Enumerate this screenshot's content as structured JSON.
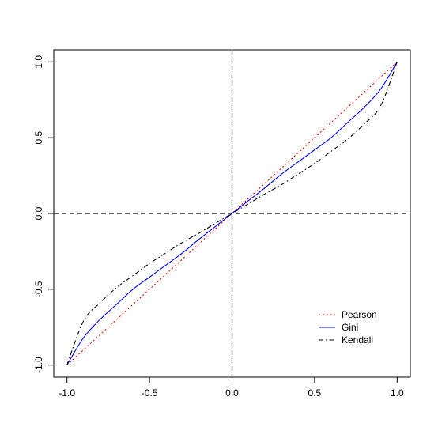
{
  "chart_data": {
    "type": "line",
    "title": "",
    "xlabel": "",
    "ylabel": "",
    "xlim": [
      -1.0,
      1.0
    ],
    "ylim": [
      -1.0,
      1.0
    ],
    "grid": false,
    "legend_position": "bottom-right",
    "x_ticks": [
      {
        "value": -1.0,
        "label": "-1.0"
      },
      {
        "value": -0.5,
        "label": "-0.5"
      },
      {
        "value": 0.0,
        "label": "0.0"
      },
      {
        "value": 0.5,
        "label": "0.5"
      },
      {
        "value": 1.0,
        "label": "1.0"
      }
    ],
    "y_ticks": [
      {
        "value": -1.0,
        "label": "-1.0"
      },
      {
        "value": -0.5,
        "label": "-0.5"
      },
      {
        "value": 0.0,
        "label": "0.0"
      },
      {
        "value": 0.5,
        "label": "0.5"
      },
      {
        "value": 1.0,
        "label": "1.0"
      }
    ],
    "reference_lines": [
      {
        "orientation": "vertical",
        "value": 0.0,
        "style": "dashed",
        "color": "#000000"
      },
      {
        "orientation": "horizontal",
        "value": 0.0,
        "style": "dashed",
        "color": "#000000"
      }
    ],
    "x": [
      -1.0,
      -0.9,
      -0.8,
      -0.7,
      -0.6,
      -0.5,
      -0.4,
      -0.3,
      -0.2,
      -0.1,
      0.0,
      0.1,
      0.2,
      0.3,
      0.4,
      0.5,
      0.6,
      0.7,
      0.8,
      0.9,
      1.0
    ],
    "series": [
      {
        "name": "Pearson",
        "color": "#ff0000",
        "style": "dotted",
        "values": [
          -1.0,
          -0.9,
          -0.8,
          -0.7,
          -0.6,
          -0.5,
          -0.4,
          -0.3,
          -0.2,
          -0.1,
          0.0,
          0.1,
          0.2,
          0.3,
          0.4,
          0.5,
          0.6,
          0.7,
          0.8,
          0.9,
          1.0
        ]
      },
      {
        "name": "Gini",
        "color": "#0000ff",
        "style": "solid",
        "values": [
          -1.0,
          -0.82,
          -0.7,
          -0.6,
          -0.5,
          -0.42,
          -0.34,
          -0.26,
          -0.17,
          -0.085,
          0.0,
          0.085,
          0.17,
          0.26,
          0.34,
          0.42,
          0.5,
          0.6,
          0.7,
          0.82,
          1.0
        ]
      },
      {
        "name": "Kendall",
        "color": "#000000",
        "style": "dashdot",
        "values": [
          -1.0,
          -0.71,
          -0.59,
          -0.49,
          -0.41,
          -0.33,
          -0.26,
          -0.19,
          -0.13,
          -0.064,
          0.0,
          0.064,
          0.13,
          0.19,
          0.26,
          0.33,
          0.41,
          0.49,
          0.59,
          0.71,
          1.0
        ]
      }
    ]
  }
}
